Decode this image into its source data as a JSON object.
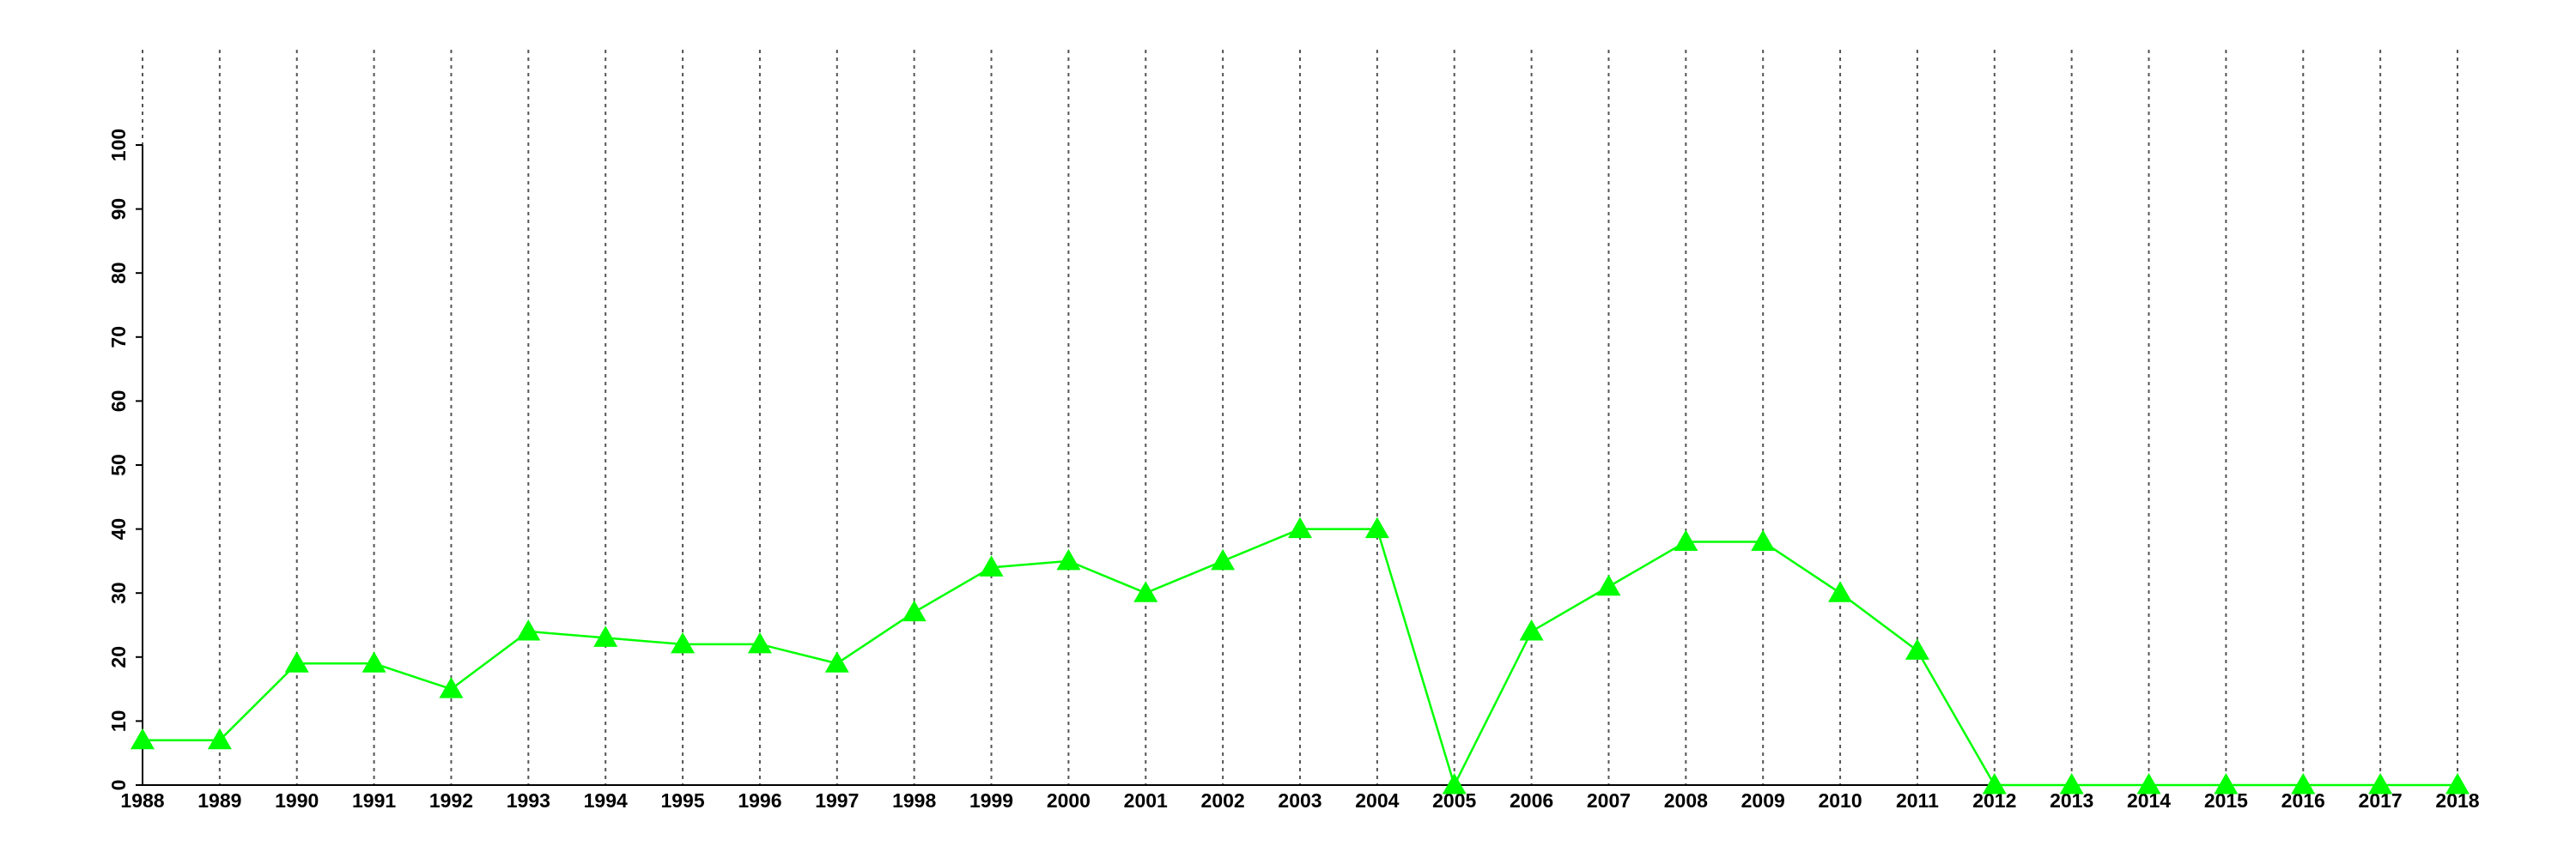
{
  "chart_data": {
    "type": "line",
    "x": [
      1988,
      1989,
      1990,
      1991,
      1992,
      1993,
      1994,
      1995,
      1996,
      1997,
      1998,
      1999,
      2000,
      2001,
      2002,
      2003,
      2004,
      2005,
      2006,
      2007,
      2008,
      2009,
      2010,
      2011,
      2012,
      2013,
      2014,
      2015,
      2016,
      2017,
      2018
    ],
    "values": [
      7,
      7,
      19,
      19,
      15,
      24,
      23,
      22,
      22,
      19,
      27,
      34,
      35,
      30,
      35,
      40,
      40,
      0,
      24,
      31,
      38,
      38,
      30,
      21,
      0,
      0,
      0,
      0,
      0,
      0,
      0
    ],
    "color": "#00ff00",
    "marker": "triangle",
    "xlim": [
      1988,
      2018
    ],
    "xticks": [
      1988,
      1989,
      1990,
      1991,
      1992,
      1993,
      1994,
      1995,
      1996,
      1997,
      1998,
      1999,
      2000,
      2001,
      2002,
      2003,
      2004,
      2005,
      2006,
      2007,
      2008,
      2009,
      2010,
      2011,
      2012,
      2013,
      2014,
      2015,
      2016,
      2017,
      2018
    ],
    "ylim": [
      0,
      100
    ],
    "yticks": [
      0,
      10,
      20,
      30,
      40,
      50,
      60,
      70,
      80,
      90,
      100
    ],
    "grid": true
  }
}
